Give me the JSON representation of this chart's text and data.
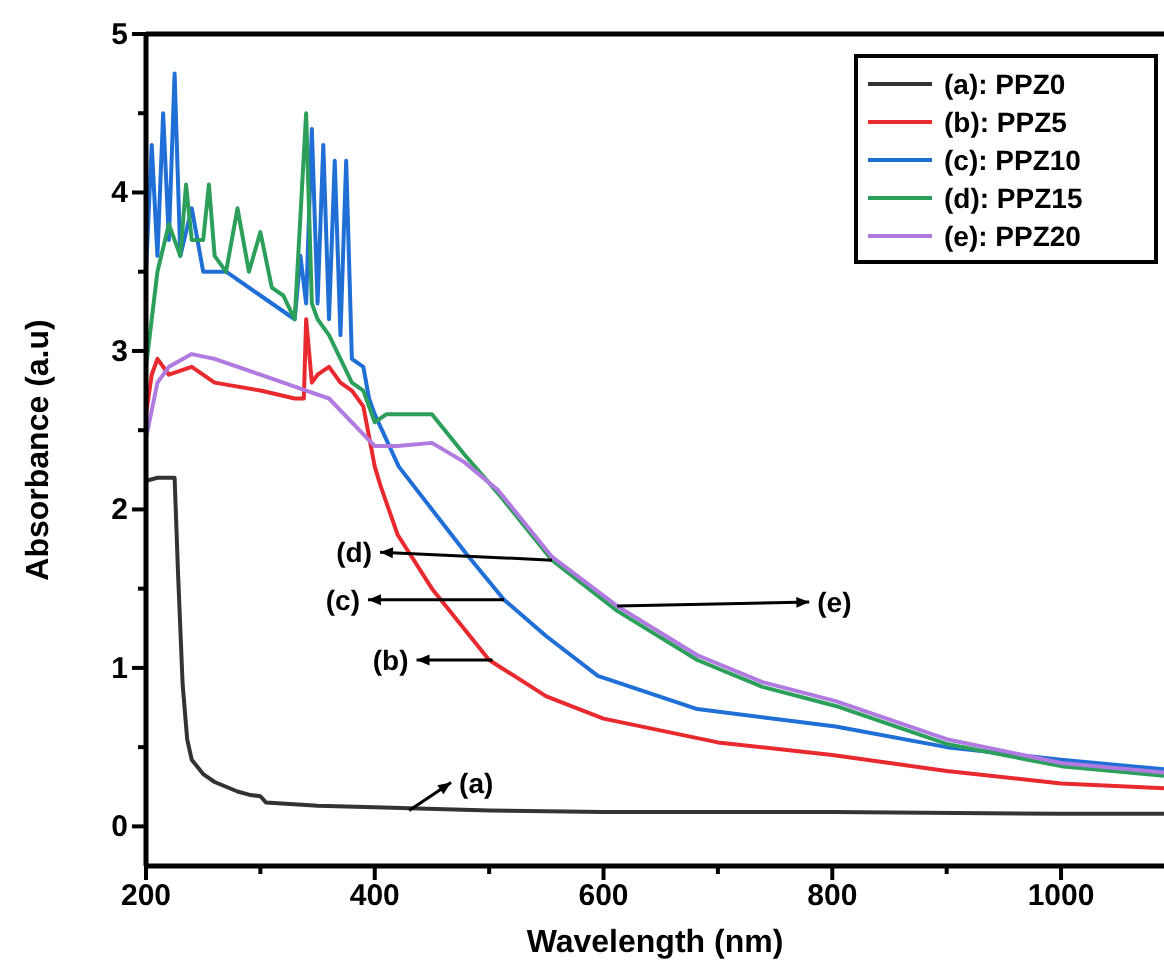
{
  "chart_data": {
    "type": "line",
    "xlabel": "Wavelength (nm)",
    "ylabel": "Absorbance (a.u)",
    "xlim": [
      200,
      1090
    ],
    "ylim": [
      -0.25,
      5
    ],
    "xticks": [
      200,
      {
        "value": 300,
        "label": null
      },
      400,
      {
        "value": 500,
        "label": null
      },
      600,
      {
        "value": 700,
        "label": null
      },
      800,
      {
        "value": 900,
        "label": null
      },
      1000
    ],
    "yticks": [
      0,
      {
        "value": 0.5,
        "label": null
      },
      1,
      {
        "value": 1.5,
        "label": null
      },
      2,
      {
        "value": 2.5,
        "label": null
      },
      3,
      {
        "value": 3.5,
        "label": null
      },
      4,
      {
        "value": 4.5,
        "label": null
      },
      5
    ],
    "grid": false,
    "legend": "top right",
    "line_style": "solid",
    "marker": "none",
    "series": [
      {
        "name": "(a): PPZ0",
        "color": "#333333",
        "x": [
          200,
          210,
          220,
          225,
          228,
          232,
          236,
          240,
          250,
          260,
          280,
          290,
          300,
          305,
          350,
          400,
          500,
          600,
          800,
          1000,
          1090
        ],
        "values": [
          2.18,
          2.2,
          2.2,
          2.2,
          1.6,
          0.9,
          0.55,
          0.42,
          0.33,
          0.28,
          0.22,
          0.2,
          0.19,
          0.15,
          0.13,
          0.12,
          0.1,
          0.09,
          0.09,
          0.08,
          0.08
        ]
      },
      {
        "name": "(b): PPZ5",
        "color": "#e8292e",
        "x": [
          200,
          205,
          210,
          220,
          240,
          260,
          300,
          330,
          338,
          340,
          345,
          350,
          360,
          370,
          380,
          390,
          400,
          405,
          420,
          450,
          500,
          550,
          600,
          700,
          800,
          900,
          1000,
          1090
        ],
        "values": [
          2.6,
          2.85,
          2.95,
          2.85,
          2.9,
          2.8,
          2.75,
          2.7,
          2.7,
          3.2,
          2.8,
          2.85,
          2.9,
          2.8,
          2.75,
          2.65,
          2.27,
          2.15,
          1.84,
          1.5,
          1.05,
          0.82,
          0.68,
          0.53,
          0.45,
          0.35,
          0.27,
          0.24
        ]
      },
      {
        "name": "(c): PPZ10",
        "color": "#1f6fd6",
        "x": [
          200,
          205,
          210,
          215,
          220,
          225,
          230,
          240,
          250,
          270,
          300,
          330,
          335,
          340,
          345,
          350,
          355,
          360,
          365,
          370,
          375,
          380,
          390,
          395,
          400,
          421,
          450,
          480,
          513,
          550,
          595,
          682,
          803,
          900,
          1000,
          1090
        ],
        "values": [
          3.5,
          4.3,
          3.6,
          4.5,
          3.7,
          4.75,
          3.6,
          3.9,
          3.5,
          3.5,
          3.35,
          3.2,
          3.6,
          3.3,
          4.4,
          3.3,
          4.3,
          3.2,
          4.2,
          3.1,
          4.2,
          2.95,
          2.9,
          2.7,
          2.6,
          2.27,
          2.0,
          1.72,
          1.43,
          1.2,
          0.95,
          0.74,
          0.63,
          0.5,
          0.42,
          0.36
        ]
      },
      {
        "name": "(d): PPZ15",
        "color": "#2ca05a",
        "x": [
          200,
          210,
          220,
          230,
          235,
          240,
          250,
          255,
          260,
          270,
          280,
          290,
          300,
          310,
          320,
          330,
          340,
          345,
          350,
          360,
          370,
          380,
          390,
          400,
          410,
          450,
          478,
          508,
          537,
          555,
          612,
          682,
          739,
          803,
          900,
          1000,
          1090
        ],
        "values": [
          2.9,
          3.5,
          3.8,
          3.6,
          4.05,
          3.7,
          3.7,
          4.05,
          3.6,
          3.5,
          3.9,
          3.5,
          3.75,
          3.4,
          3.35,
          3.2,
          4.5,
          3.3,
          3.2,
          3.1,
          2.95,
          2.8,
          2.75,
          2.55,
          2.6,
          2.6,
          2.35,
          2.1,
          1.84,
          1.68,
          1.36,
          1.05,
          0.88,
          0.76,
          0.52,
          0.38,
          0.32
        ]
      },
      {
        "name": "(e): PPZ20",
        "color": "#b07ae0",
        "x": [
          200,
          210,
          220,
          240,
          260,
          300,
          340,
          360,
          380,
          400,
          420,
          450,
          478,
          508,
          537,
          555,
          612,
          682,
          739,
          803,
          900,
          1000,
          1090
        ],
        "values": [
          2.45,
          2.8,
          2.9,
          2.98,
          2.95,
          2.85,
          2.75,
          2.7,
          2.55,
          2.4,
          2.4,
          2.42,
          2.3,
          2.12,
          1.86,
          1.7,
          1.39,
          1.08,
          0.91,
          0.79,
          0.55,
          0.4,
          0.34
        ]
      }
    ],
    "annotations": [
      {
        "text": "(a)",
        "x": 430,
        "y": 0.1
      },
      {
        "text": "(b)",
        "x": 503,
        "y": 1.05
      },
      {
        "text": "(c)",
        "x": 513,
        "y": 1.43
      },
      {
        "text": "(d)",
        "x": 555,
        "y": 1.68
      },
      {
        "text": "(e)",
        "x": 612,
        "y": 1.39
      }
    ]
  }
}
